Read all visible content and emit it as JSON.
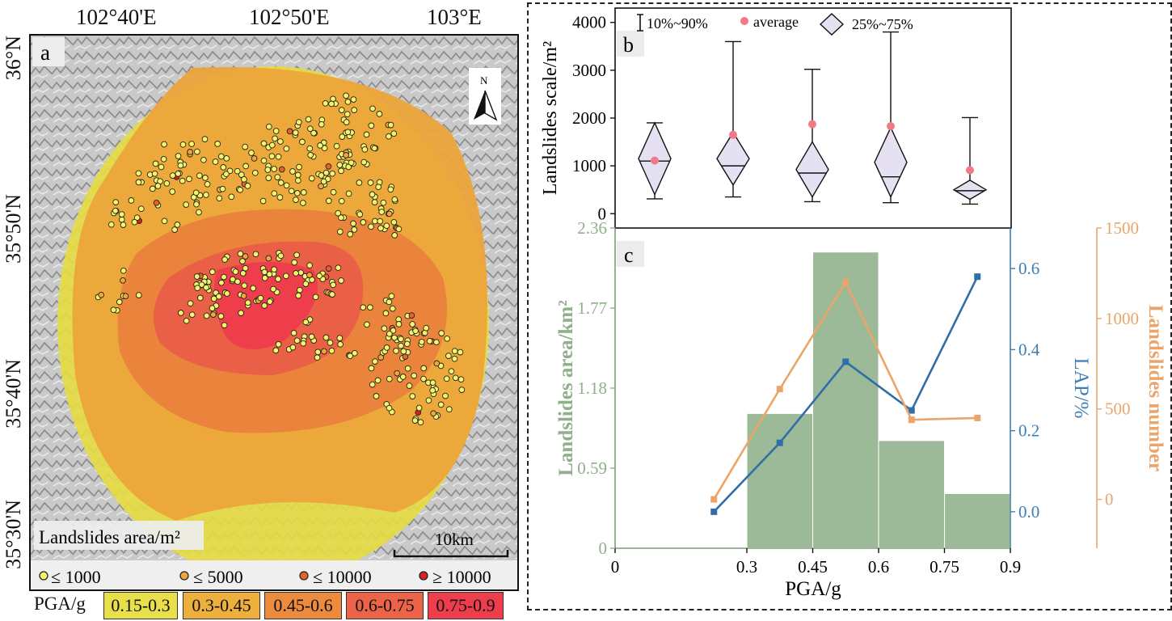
{
  "map": {
    "panel_label": "a",
    "north_label": "N",
    "top_ticks": [
      "102°40'E",
      "102°50'E",
      "103°E"
    ],
    "left_ticks": [
      "36°N",
      "35°50'N",
      "35°40'N",
      "35°30'N"
    ],
    "bottom_tick": "35°30'N",
    "scale_label": "10km",
    "area_legend_title": "Landslides area/m²",
    "area_legend": [
      {
        "label": "≤ 1000",
        "color": "#f5f56a"
      },
      {
        "label": "≤ 5000",
        "color": "#f0a63a"
      },
      {
        "label": "≤ 10000",
        "color": "#e6642a"
      },
      {
        "label": "≥ 10000",
        "color": "#d81f26"
      }
    ],
    "pga_title": "PGA/g",
    "pga_classes": [
      {
        "label": "0.15-0.3",
        "color": "#e8df4a"
      },
      {
        "label": "0.3-0.45",
        "color": "#eeb03c"
      },
      {
        "label": "0.45-0.6",
        "color": "#ec8a3e"
      },
      {
        "label": "0.6-0.75",
        "color": "#ec6348"
      },
      {
        "label": "0.75-0.9",
        "color": "#ee3d4d"
      }
    ]
  },
  "chart_data": [
    {
      "type": "boxplot",
      "panel_label": "b",
      "title": "",
      "ylabel": "Landslides scale/m²",
      "ylim": [
        -300,
        4300
      ],
      "yticks": [
        0,
        1000,
        2000,
        3000,
        4000
      ],
      "ytick_labels": [
        "0",
        "1000",
        "2000",
        "3000",
        "4000"
      ],
      "legend": {
        "whisker": "10%~90%",
        "mean": "average",
        "box": "25%~75%"
      },
      "colors": {
        "box": "#e6e1f2",
        "mean": "#f07b86"
      },
      "groups": [
        {
          "p10": 310,
          "p25": 400,
          "median": 1100,
          "p75": 1900,
          "p90": 1900,
          "mean": 1110
        },
        {
          "p10": 350,
          "p25": 600,
          "median": 1000,
          "p75": 1700,
          "p90": 3600,
          "mean": 1650
        },
        {
          "p10": 250,
          "p25": 350,
          "median": 850,
          "p75": 1500,
          "p90": 3020,
          "mean": 1870
        },
        {
          "p10": 230,
          "p25": 350,
          "median": 770,
          "p75": 1800,
          "p90": 3800,
          "mean": 1830
        },
        {
          "p10": 200,
          "p25": 300,
          "median": 480,
          "p75": 700,
          "p90": 2010,
          "mean": 910
        }
      ]
    },
    {
      "type": "bar+line",
      "panel_label": "c",
      "xlabel": "PGA/g",
      "xlim": [
        0,
        0.9
      ],
      "xticks": [
        0,
        0.3,
        0.45,
        0.6,
        0.75,
        0.9
      ],
      "xtick_labels": [
        "0",
        "0.3",
        "0.45",
        "0.6",
        "0.75",
        "0.9"
      ],
      "left_axis": {
        "label": "Landslides area/km²",
        "ylim": [
          0,
          2.36
        ],
        "ticks": [
          0,
          0.59,
          1.18,
          1.77,
          2.36
        ],
        "tick_labels": [
          "0",
          "0.59",
          "1.18",
          "1.77",
          "2.36"
        ],
        "color": "#8fb08a"
      },
      "right_axis_1": {
        "label": "LAP/%",
        "ylim": [
          -0.09,
          0.7
        ],
        "ticks": [
          0,
          0.2,
          0.4,
          0.6
        ],
        "tick_labels": [
          "0.0",
          "0.2",
          "0.4",
          "0.6"
        ],
        "color": "#3d7db5"
      },
      "right_axis_2": {
        "label": "Landslides number",
        "ylim": [
          -270,
          1500
        ],
        "ticks": [
          0,
          500,
          1000,
          1500
        ],
        "tick_labels": [
          "0",
          "500",
          "1000",
          "1500"
        ],
        "color": "#eba56a"
      },
      "bars": {
        "name": "Landslides area",
        "x": [
          0.375,
          0.525,
          0.675,
          0.825
        ],
        "values": [
          0.99,
          2.18,
          0.79,
          0.4
        ],
        "color": "#9cba97"
      },
      "series": [
        {
          "name": "LAP",
          "axis": "right_axis_1",
          "x": [
            0.225,
            0.375,
            0.525,
            0.675,
            0.825
          ],
          "values": [
            0.0,
            0.17,
            0.37,
            0.25,
            0.58
          ],
          "color": "#2f6ea8"
        },
        {
          "name": "Landslides number",
          "axis": "right_axis_2",
          "x": [
            0.225,
            0.375,
            0.525,
            0.675,
            0.825
          ],
          "values": [
            0,
            610,
            1200,
            440,
            450
          ],
          "color": "#eba56a"
        }
      ]
    }
  ]
}
